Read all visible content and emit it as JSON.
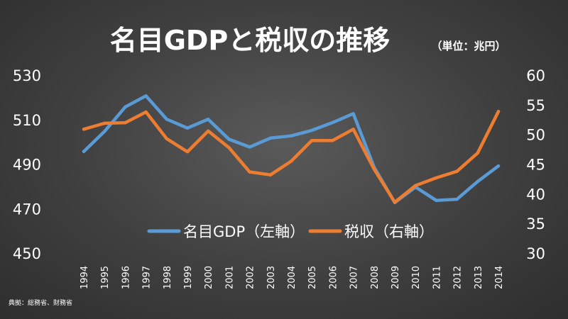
{
  "chart_data": {
    "type": "line",
    "title": "名目GDPと税収の推移",
    "subtitle": "（単位：兆円）",
    "x": [
      "1994",
      "1995",
      "1996",
      "1997",
      "1998",
      "1999",
      "2000",
      "2001",
      "2002",
      "2003",
      "2004",
      "2005",
      "2006",
      "2007",
      "2008",
      "2009",
      "2010",
      "2011",
      "2012",
      "2013",
      "2014"
    ],
    "series": [
      {
        "name": "名目GDP（左軸）",
        "axis": "left",
        "color": "#5b9bd5",
        "values": [
          496,
          505,
          516,
          521,
          510.5,
          506.5,
          510.5,
          501.5,
          498,
          502,
          503,
          505.5,
          509,
          513,
          489,
          473,
          480,
          474,
          474.5,
          482.5,
          489.5
        ]
      },
      {
        "name": "税収（右軸）",
        "axis": "right",
        "color": "#ed7d31",
        "values": [
          51,
          52,
          52.1,
          53.9,
          49.4,
          47.2,
          50.7,
          47.9,
          43.8,
          43.3,
          45.6,
          49.1,
          49.1,
          51.0,
          44.3,
          38.7,
          41.5,
          42.8,
          43.9,
          47.0,
          54.0
        ]
      }
    ],
    "yleft": {
      "lim": [
        450,
        530
      ],
      "ticks": [
        "450",
        "470",
        "490",
        "510",
        "530"
      ]
    },
    "yright": {
      "lim": [
        30,
        60
      ],
      "ticks": [
        "30",
        "35",
        "40",
        "45",
        "50",
        "55",
        "60"
      ]
    },
    "grid": false,
    "legend_position": "bottom-center"
  },
  "source": "典拠：総務省、財務省"
}
